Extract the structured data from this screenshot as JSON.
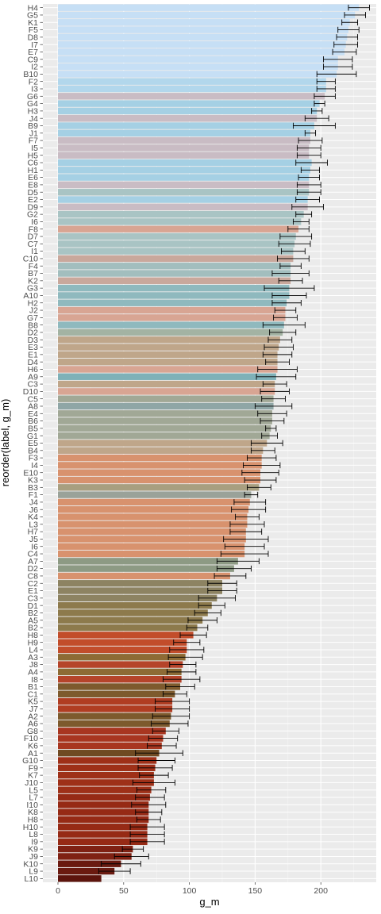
{
  "chart_data": {
    "type": "bar",
    "orientation": "horizontal",
    "xlabel": "g_m",
    "ylabel": "reorder(label, g_m)",
    "xlim": [
      -10,
      243
    ],
    "xticks": [
      0,
      50,
      100,
      150,
      200
    ],
    "grid": true,
    "legend": "none",
    "error_bars": true,
    "bars": [
      {
        "label": "H4",
        "value": 229,
        "err": 8,
        "color": "#c6dff5"
      },
      {
        "label": "G5",
        "value": 226,
        "err": 8,
        "color": "#c6dff5"
      },
      {
        "label": "K1",
        "value": 222,
        "err": 6,
        "color": "#c6dff5"
      },
      {
        "label": "F5",
        "value": 221,
        "err": 8,
        "color": "#c6dff5"
      },
      {
        "label": "D8",
        "value": 220,
        "err": 8,
        "color": "#c6dff5"
      },
      {
        "label": "I7",
        "value": 219,
        "err": 9,
        "color": "#c6dff5"
      },
      {
        "label": "E7",
        "value": 218,
        "err": 9,
        "color": "#c6dff5"
      },
      {
        "label": "C9",
        "value": 213,
        "err": 11,
        "color": "#c6dff5"
      },
      {
        "label": "I2",
        "value": 213,
        "err": 11,
        "color": "#c6dff5"
      },
      {
        "label": "B10",
        "value": 212,
        "err": 15,
        "color": "#c6dff5"
      },
      {
        "label": "F2",
        "value": 204,
        "err": 7,
        "color": "#b2d7ec"
      },
      {
        "label": "I3",
        "value": 204,
        "err": 7,
        "color": "#b2d7ec"
      },
      {
        "label": "G6",
        "value": 203,
        "err": 8,
        "color": "#c9bcc4"
      },
      {
        "label": "G4",
        "value": 199,
        "err": 4,
        "color": "#a5d0e4"
      },
      {
        "label": "H3",
        "value": 197,
        "err": 4,
        "color": "#a5d0e4"
      },
      {
        "label": "J4",
        "value": 197,
        "err": 9,
        "color": "#c9bcc4"
      },
      {
        "label": "B9",
        "value": 195,
        "err": 16,
        "color": "#a5d0e4"
      },
      {
        "label": "J1",
        "value": 192,
        "err": 4,
        "color": "#a5d0e4"
      },
      {
        "label": "F7",
        "value": 192,
        "err": 9,
        "color": "#c9bcc4"
      },
      {
        "label": "I5",
        "value": 191,
        "err": 9,
        "color": "#c9bcc4"
      },
      {
        "label": "H5",
        "value": 191,
        "err": 9,
        "color": "#c9bcc4"
      },
      {
        "label": "C6",
        "value": 193,
        "err": 12,
        "color": "#a5d0e4"
      },
      {
        "label": "H1",
        "value": 192,
        "err": 7,
        "color": "#a5d0e4"
      },
      {
        "label": "E6",
        "value": 191,
        "err": 8,
        "color": "#a5d0e4"
      },
      {
        "label": "E8",
        "value": 191,
        "err": 9,
        "color": "#c9bcc4"
      },
      {
        "label": "D5",
        "value": 191,
        "err": 9,
        "color": "#a9c4c4"
      },
      {
        "label": "E2",
        "value": 190,
        "err": 9,
        "color": "#a5d0e4"
      },
      {
        "label": "D9",
        "value": 190,
        "err": 12,
        "color": "#c9bcc4"
      },
      {
        "label": "G2",
        "value": 187,
        "err": 6,
        "color": "#a9c4c4"
      },
      {
        "label": "I6",
        "value": 185,
        "err": 6,
        "color": "#a9c4c4"
      },
      {
        "label": "F8",
        "value": 183,
        "err": 8,
        "color": "#d8a593"
      },
      {
        "label": "D7",
        "value": 181,
        "err": 12,
        "color": "#a9c4c4"
      },
      {
        "label": "C7",
        "value": 180,
        "err": 12,
        "color": "#a9c4c4"
      },
      {
        "label": "I1",
        "value": 179,
        "err": 9,
        "color": "#a9c4c4"
      },
      {
        "label": "C10",
        "value": 179,
        "err": 12,
        "color": "#c9a89c"
      },
      {
        "label": "F4",
        "value": 177,
        "err": 8,
        "color": "#a2bebe"
      },
      {
        "label": "B7",
        "value": 177,
        "err": 14,
        "color": "#a2bebe"
      },
      {
        "label": "K2",
        "value": 177,
        "err": 9,
        "color": "#c9a89c"
      },
      {
        "label": "G3",
        "value": 176,
        "err": 19,
        "color": "#8fb9be"
      },
      {
        "label": "A10",
        "value": 176,
        "err": 13,
        "color": "#8fb9be"
      },
      {
        "label": "H2",
        "value": 174,
        "err": 11,
        "color": "#8fb9be"
      },
      {
        "label": "J2",
        "value": 173,
        "err": 8,
        "color": "#d8a593"
      },
      {
        "label": "G7",
        "value": 173,
        "err": 9,
        "color": "#d8a593"
      },
      {
        "label": "B8",
        "value": 172,
        "err": 16,
        "color": "#8fb9be"
      },
      {
        "label": "D2",
        "value": 171,
        "err": 10,
        "color": "#a3b3a3"
      },
      {
        "label": "D3",
        "value": 169,
        "err": 9,
        "color": "#bfa68a"
      },
      {
        "label": "E3",
        "value": 168,
        "err": 11,
        "color": "#bfa68a"
      },
      {
        "label": "E1",
        "value": 167,
        "err": 11,
        "color": "#bfa68a"
      },
      {
        "label": "D4",
        "value": 167,
        "err": 9,
        "color": "#bfa68a"
      },
      {
        "label": "H6",
        "value": 167,
        "err": 15,
        "color": "#d8a593"
      },
      {
        "label": "A9",
        "value": 166,
        "err": 15,
        "color": "#7fb1b8"
      },
      {
        "label": "C3",
        "value": 165,
        "err": 9,
        "color": "#bfa68a"
      },
      {
        "label": "D10",
        "value": 165,
        "err": 11,
        "color": "#d8a593"
      },
      {
        "label": "C5",
        "value": 164,
        "err": 9,
        "color": "#a1a896"
      },
      {
        "label": "A8",
        "value": 164,
        "err": 14,
        "color": "#8fa6a6"
      },
      {
        "label": "E4",
        "value": 163,
        "err": 11,
        "color": "#a1a896"
      },
      {
        "label": "B6",
        "value": 163,
        "err": 9,
        "color": "#a1a896"
      },
      {
        "label": "B5",
        "value": 162,
        "err": 4,
        "color": "#a1a896"
      },
      {
        "label": "G1",
        "value": 161,
        "err": 6,
        "color": "#a1a896"
      },
      {
        "label": "E5",
        "value": 159,
        "err": 12,
        "color": "#bfa68a"
      },
      {
        "label": "B4",
        "value": 156,
        "err": 9,
        "color": "#bfa68a"
      },
      {
        "label": "F3",
        "value": 155,
        "err": 11,
        "color": "#d8926e"
      },
      {
        "label": "I4",
        "value": 155,
        "err": 14,
        "color": "#d8926e"
      },
      {
        "label": "E10",
        "value": 154,
        "err": 14,
        "color": "#d8926e"
      },
      {
        "label": "K3",
        "value": 154,
        "err": 12,
        "color": "#d8926e"
      },
      {
        "label": "B3",
        "value": 153,
        "err": 9,
        "color": "#a89f80"
      },
      {
        "label": "F1",
        "value": 147,
        "err": 5,
        "color": "#9aa299"
      },
      {
        "label": "J4",
        "value": 146,
        "err": 12,
        "color": "#d8926e"
      },
      {
        "label": "J6",
        "value": 145,
        "err": 13,
        "color": "#d8926e"
      },
      {
        "label": "K4",
        "value": 144,
        "err": 9,
        "color": "#d8926e"
      },
      {
        "label": "L3",
        "value": 144,
        "err": 13,
        "color": "#d8926e"
      },
      {
        "label": "H7",
        "value": 143,
        "err": 12,
        "color": "#d8926e"
      },
      {
        "label": "J5",
        "value": 143,
        "err": 17,
        "color": "#d8926e"
      },
      {
        "label": "I6",
        "value": 142,
        "err": 15,
        "color": "#d8926e"
      },
      {
        "label": "C4",
        "value": 142,
        "err": 18,
        "color": "#d8926e"
      },
      {
        "label": "A7",
        "value": 137,
        "err": 16,
        "color": "#8d9a84"
      },
      {
        "label": "D2",
        "value": 134,
        "err": 13,
        "color": "#8d9a84"
      },
      {
        "label": "C8",
        "value": 131,
        "err": 12,
        "color": "#d8926e"
      },
      {
        "label": "C2",
        "value": 125,
        "err": 11,
        "color": "#8d8362"
      },
      {
        "label": "E1",
        "value": 125,
        "err": 11,
        "color": "#8d8362"
      },
      {
        "label": "C3",
        "value": 121,
        "err": 14,
        "color": "#8d8362"
      },
      {
        "label": "D1",
        "value": 117,
        "err": 10,
        "color": "#8d7a4c"
      },
      {
        "label": "B2",
        "value": 114,
        "err": 10,
        "color": "#8d7a4c"
      },
      {
        "label": "A5",
        "value": 110,
        "err": 11,
        "color": "#8d7a4c"
      },
      {
        "label": "B2",
        "value": 106,
        "err": 8,
        "color": "#8d7a4c"
      },
      {
        "label": "H8",
        "value": 103,
        "err": 10,
        "color": "#c24d2b"
      },
      {
        "label": "H9",
        "value": 98,
        "err": 10,
        "color": "#c24d2b"
      },
      {
        "label": "L4",
        "value": 98,
        "err": 13,
        "color": "#c24d2b"
      },
      {
        "label": "A3",
        "value": 97,
        "err": 13,
        "color": "#8d6b35"
      },
      {
        "label": "J8",
        "value": 95,
        "err": 10,
        "color": "#b5442a"
      },
      {
        "label": "A4",
        "value": 94,
        "err": 11,
        "color": "#8d6b35"
      },
      {
        "label": "I8",
        "value": 94,
        "err": 14,
        "color": "#b5442a"
      },
      {
        "label": "B1",
        "value": 93,
        "err": 11,
        "color": "#7d5a2d"
      },
      {
        "label": "C1",
        "value": 89,
        "err": 9,
        "color": "#7d5a2d"
      },
      {
        "label": "K5",
        "value": 87,
        "err": 13,
        "color": "#b03d22"
      },
      {
        "label": "J7",
        "value": 87,
        "err": 13,
        "color": "#b03d22"
      },
      {
        "label": "A2",
        "value": 86,
        "err": 14,
        "color": "#7d5a2d"
      },
      {
        "label": "A6",
        "value": 85,
        "err": 14,
        "color": "#7d5a2d"
      },
      {
        "label": "G8",
        "value": 82,
        "err": 10,
        "color": "#a83620"
      },
      {
        "label": "F10",
        "value": 80,
        "err": 11,
        "color": "#a83620"
      },
      {
        "label": "K6",
        "value": 79,
        "err": 11,
        "color": "#a83620"
      },
      {
        "label": "A1",
        "value": 77,
        "err": 18,
        "color": "#6f4a22"
      },
      {
        "label": "G10",
        "value": 75,
        "err": 14,
        "color": "#9e3018"
      },
      {
        "label": "F9",
        "value": 74,
        "err": 13,
        "color": "#9e3018"
      },
      {
        "label": "K7",
        "value": 73,
        "err": 11,
        "color": "#9e3018"
      },
      {
        "label": "J10",
        "value": 73,
        "err": 16,
        "color": "#9e3018"
      },
      {
        "label": "L5",
        "value": 71,
        "err": 11,
        "color": "#9e3018"
      },
      {
        "label": "L7",
        "value": 70,
        "err": 11,
        "color": "#962a15"
      },
      {
        "label": "I10",
        "value": 69,
        "err": 13,
        "color": "#962a15"
      },
      {
        "label": "K8",
        "value": 69,
        "err": 10,
        "color": "#962a15"
      },
      {
        "label": "H8",
        "value": 69,
        "err": 9,
        "color": "#962a15"
      },
      {
        "label": "H10",
        "value": 68,
        "err": 13,
        "color": "#962a15"
      },
      {
        "label": "L8",
        "value": 68,
        "err": 13,
        "color": "#962a15"
      },
      {
        "label": "I9",
        "value": 68,
        "err": 13,
        "color": "#962a15"
      },
      {
        "label": "K9",
        "value": 57,
        "err": 8,
        "color": "#7f2113"
      },
      {
        "label": "J9",
        "value": 56,
        "err": 13,
        "color": "#7f2113"
      },
      {
        "label": "K10",
        "value": 48,
        "err": 15,
        "color": "#6a1a10"
      },
      {
        "label": "L9",
        "value": 43,
        "err": 12,
        "color": "#6a1a10"
      },
      {
        "label": "L10",
        "value": 33,
        "err": 0,
        "color": "#5c140d"
      }
    ]
  }
}
